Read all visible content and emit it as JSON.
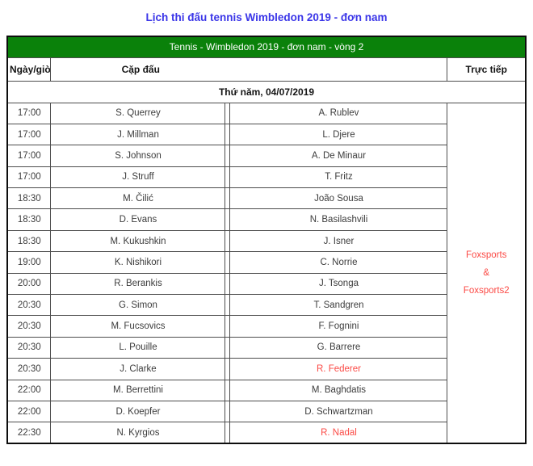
{
  "title": "Lịch thi đấu tennis Wimbledon 2019 - đơn nam",
  "table": {
    "caption": "Tennis - Wimbledon 2019 - đơn nam - vòng 2",
    "columns": {
      "datetime": "Ngày/giờ",
      "matchup": "Cặp đấu",
      "live": "Trực tiếp"
    },
    "day_header": "Thứ năm, 04/07/2019",
    "broadcaster": {
      "line1": "Foxsports",
      "line2": "&",
      "line3": "Foxsports2"
    },
    "rows": [
      {
        "time": "17:00",
        "player1": "S. Querrey",
        "player2": "A. Rublev",
        "player2_highlight": false
      },
      {
        "time": "17:00",
        "player1": "J. Millman",
        "player2": "L. Djere",
        "player2_highlight": false
      },
      {
        "time": "17:00",
        "player1": "S. Johnson",
        "player2": "A. De Minaur",
        "player2_highlight": false
      },
      {
        "time": "17:00",
        "player1": "J. Struff",
        "player2": "T. Fritz",
        "player2_highlight": false
      },
      {
        "time": "18:30",
        "player1": "M. Čilić",
        "player2": "João Sousa",
        "player2_highlight": false
      },
      {
        "time": "18:30",
        "player1": "D. Evans",
        "player2": "N. Basilashvili",
        "player2_highlight": false
      },
      {
        "time": "18:30",
        "player1": "M. Kukushkin",
        "player2": "J. Isner",
        "player2_highlight": false
      },
      {
        "time": "19:00",
        "player1": "K. Nishikori",
        "player2": "C. Norrie",
        "player2_highlight": false
      },
      {
        "time": "20:00",
        "player1": "R. Berankis",
        "player2": "J. Tsonga",
        "player2_highlight": false
      },
      {
        "time": "20:30",
        "player1": "G. Simon",
        "player2": "T. Sandgren",
        "player2_highlight": false
      },
      {
        "time": "20:30",
        "player1": "M. Fucsovics",
        "player2": "F. Fognini",
        "player2_highlight": false
      },
      {
        "time": "20:30",
        "player1": "L. Pouille",
        "player2": "G. Barrere",
        "player2_highlight": false
      },
      {
        "time": "20:30",
        "player1": "J. Clarke",
        "player2": "R. Federer",
        "player2_highlight": true
      },
      {
        "time": "22:00",
        "player1": "M. Berrettini",
        "player2": "M. Baghdatis",
        "player2_highlight": false
      },
      {
        "time": "22:00",
        "player1": "D. Koepfer",
        "player2": "D. Schwartzman",
        "player2_highlight": false
      },
      {
        "time": "22:30",
        "player1": "N. Kyrgios",
        "player2": "R. Nadal",
        "player2_highlight": true
      }
    ]
  },
  "colors": {
    "title_blue": "#3b36e8",
    "header_green": "#0a810a",
    "highlight_red": "#fb4a45"
  }
}
